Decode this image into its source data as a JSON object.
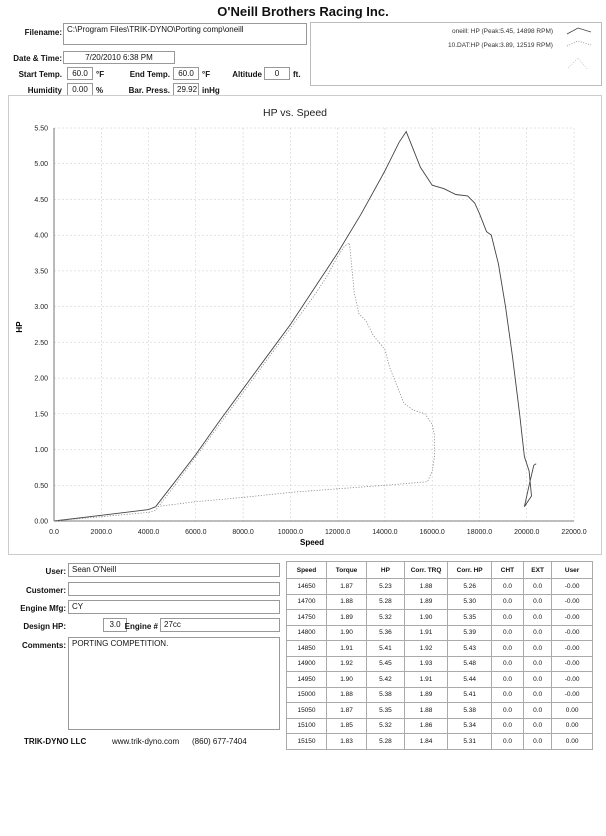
{
  "header": {
    "title": "O'Neill Brothers Racing Inc.",
    "filename_label": "Filename:",
    "filename": "C:\\Program Files\\TRIK-DYNO\\Porting comp\\oneill",
    "datetime_label": "Date & Time:",
    "datetime": "7/20/2010 6:38 PM",
    "start_temp_label": "Start Temp.",
    "start_temp": "60.0",
    "start_temp_unit": "°F",
    "end_temp_label": "End Temp.",
    "end_temp": "60.0",
    "end_temp_unit": "°F",
    "altitude_label": "Altitude",
    "altitude": "0",
    "altitude_unit": "ft.",
    "humidity_label": "Humidity",
    "humidity": "0.00",
    "humidity_unit": "%",
    "bar_press_label": "Bar. Press.",
    "bar_press": "29.92",
    "bar_press_unit": "inHg"
  },
  "legend": {
    "entry1": "oneill: HP (Peak:5.45, 14898 RPM)",
    "entry2": "10.DAT:HP (Peak:3.89, 12519 RPM)"
  },
  "chart_data": {
    "type": "line",
    "title": "HP vs. Speed",
    "xlabel": "Speed",
    "ylabel": "HP",
    "xlim": [
      0,
      22000
    ],
    "ylim": [
      0,
      5.5
    ],
    "x_ticks": [
      "0.0",
      "2000.0",
      "4000.0",
      "6000.0",
      "8000.0",
      "10000.0",
      "12000.0",
      "14000.0",
      "16000.0",
      "18000.0",
      "20000.0",
      "22000.0"
    ],
    "y_ticks": [
      "0.00",
      "0.50",
      "1.00",
      "1.50",
      "2.00",
      "2.50",
      "3.00",
      "3.50",
      "4.00",
      "4.50",
      "5.00",
      "5.50"
    ],
    "grid": true,
    "series": [
      {
        "name": "oneill: HP (Peak:5.45, 14898 RPM)",
        "style": "solid",
        "color": "#444444",
        "x": [
          0,
          2000,
          4000,
          4300,
          5000,
          6000,
          7000,
          8000,
          9000,
          10000,
          11000,
          12000,
          13000,
          14000,
          14600,
          14900,
          15200,
          15500,
          16000,
          16500,
          17000,
          17500,
          17800,
          18000,
          18300,
          18500,
          18800,
          19100,
          19400,
          19700,
          19900,
          20100,
          20200,
          20000,
          19900,
          20100,
          20300,
          20400
        ],
        "y": [
          0,
          0.08,
          0.16,
          0.2,
          0.5,
          0.93,
          1.4,
          1.85,
          2.3,
          2.75,
          3.25,
          3.75,
          4.3,
          4.9,
          5.3,
          5.45,
          5.2,
          4.95,
          4.7,
          4.65,
          4.57,
          4.55,
          4.45,
          4.3,
          4.05,
          4.0,
          3.6,
          3.0,
          2.3,
          1.5,
          0.9,
          0.7,
          0.35,
          0.25,
          0.2,
          0.5,
          0.78,
          0.8
        ]
      },
      {
        "name": "10.DAT:HP (Peak:3.89, 12519 RPM)",
        "style": "dotted",
        "color": "#888888",
        "x": [
          0,
          2000,
          4000,
          4300,
          5000,
          6000,
          7000,
          8000,
          9000,
          10000,
          11000,
          11500,
          12000,
          12300,
          12500,
          12700,
          12900,
          13200,
          13500,
          14000,
          14200,
          14500,
          14800,
          15200,
          15700,
          16000,
          16100,
          16100,
          16000,
          15800,
          14000,
          12000,
          10000,
          8000,
          6000,
          4300
        ],
        "y": [
          0,
          0.06,
          0.12,
          0.15,
          0.45,
          0.9,
          1.35,
          1.8,
          2.25,
          2.7,
          3.15,
          3.4,
          3.7,
          3.85,
          3.89,
          3.2,
          2.9,
          2.8,
          2.6,
          2.4,
          2.15,
          1.9,
          1.65,
          1.55,
          1.5,
          1.35,
          1.2,
          0.9,
          0.7,
          0.55,
          0.5,
          0.45,
          0.4,
          0.33,
          0.27,
          0.2
        ]
      }
    ]
  },
  "user_info": {
    "user_label": "User:",
    "user": "Sean O'Neill",
    "customer_label": "Customer:",
    "customer": "",
    "engine_mfg_label": "Engine Mfg:",
    "engine_mfg": "CY",
    "design_hp_label": "Design HP:",
    "design_hp": "3.0",
    "engine_num_label": "Engine #",
    "engine_num": "27cc",
    "comments_label": "Comments:",
    "comments": "PORTING COMPETITION."
  },
  "table": {
    "headers": [
      "Speed",
      "Torque",
      "HP",
      "Corr. TRQ",
      "Corr. HP",
      "CHT",
      "EXT",
      "User"
    ],
    "rows": [
      [
        "14650",
        "1.87",
        "5.23",
        "1.88",
        "5.26",
        "0.0",
        "0.0",
        "-0.00"
      ],
      [
        "14700",
        "1.88",
        "5.28",
        "1.89",
        "5.30",
        "0.0",
        "0.0",
        "-0.00"
      ],
      [
        "14750",
        "1.89",
        "5.32",
        "1.90",
        "5.35",
        "0.0",
        "0.0",
        "-0.00"
      ],
      [
        "14800",
        "1.90",
        "5.36",
        "1.91",
        "5.39",
        "0.0",
        "0.0",
        "-0.00"
      ],
      [
        "14850",
        "1.91",
        "5.41",
        "1.92",
        "5.43",
        "0.0",
        "0.0",
        "-0.00"
      ],
      [
        "14900",
        "1.92",
        "5.45",
        "1.93",
        "5.48",
        "0.0",
        "0.0",
        "-0.00"
      ],
      [
        "14950",
        "1.90",
        "5.42",
        "1.91",
        "5.44",
        "0.0",
        "0.0",
        "-0.00"
      ],
      [
        "15000",
        "1.88",
        "5.38",
        "1.89",
        "5.41",
        "0.0",
        "0.0",
        "-0.00"
      ],
      [
        "15050",
        "1.87",
        "5.35",
        "1.88",
        "5.38",
        "0.0",
        "0.0",
        "0.00"
      ],
      [
        "15100",
        "1.85",
        "5.32",
        "1.86",
        "5.34",
        "0.0",
        "0.0",
        "0.00"
      ],
      [
        "15150",
        "1.83",
        "5.28",
        "1.84",
        "5.31",
        "0.0",
        "0.0",
        "0.00"
      ]
    ]
  },
  "footer": {
    "company": "TRIK-DYNO LLC",
    "website": "www.trik-dyno.com",
    "phone": "(860) 677-7404"
  }
}
